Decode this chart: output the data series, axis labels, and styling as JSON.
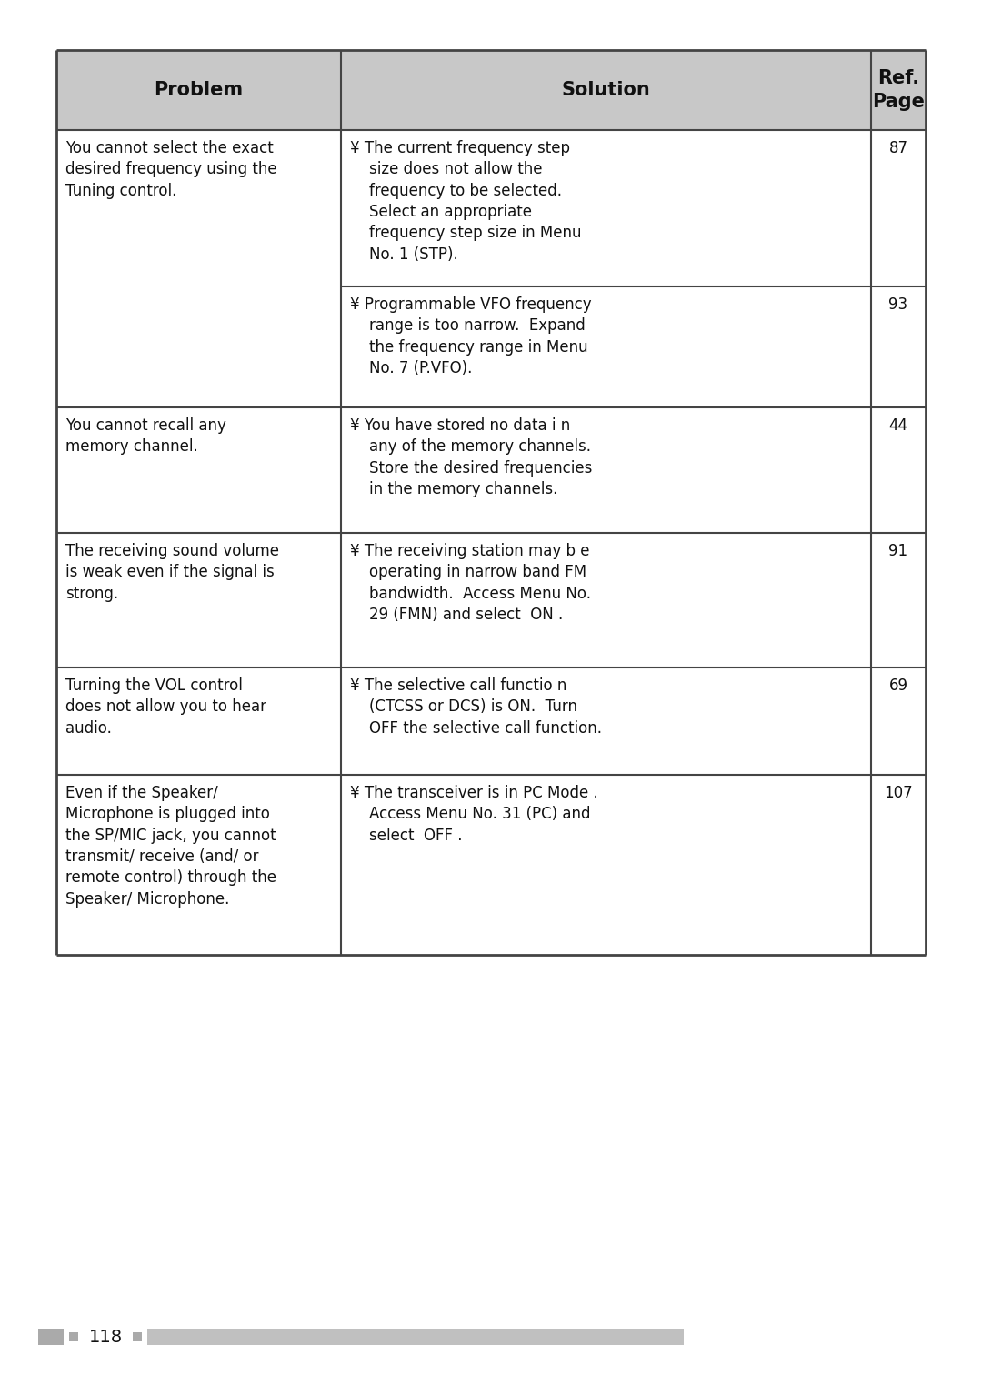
{
  "bg_color": "#ffffff",
  "table_border_color": "#444444",
  "header_bg_color": "#c8c8c8",
  "page_number": "118",
  "header_row": [
    "Problem",
    "Solution",
    "Ref.\nPage"
  ],
  "rows": [
    {
      "problem": "You cannot select the exact\ndesired frequency using the\nTuning control.",
      "solutions": [
        {
          "text": "¥ The current frequency step\n    size does not allow the\n    frequency to be selected.\n    Select an appropriate\n    frequency step size in Menu\n    No. 1 (STP).",
          "ref": "87"
        },
        {
          "text": "¥ Programmable VFO frequency\n    range is too narrow.  Expand\n    the frequency range in Menu\n    No. 7 (P.VFO).",
          "ref": "93"
        }
      ]
    },
    {
      "problem": "You cannot recall any\nmemory channel.",
      "solutions": [
        {
          "text": "¥ You have stored no data i n\n    any of the memory channels.\n    Store the desired frequencies\n    in the memory channels.",
          "ref": "44"
        }
      ]
    },
    {
      "problem": "The receiving sound volume\nis weak even if the signal is\nstrong.",
      "solutions": [
        {
          "text": "¥ The receiving station may b e\n    operating in narrow band FM\n    bandwidth.  Access Menu No.\n    29 (FMN) and select  ON .",
          "ref": "91"
        }
      ]
    },
    {
      "problem": "Turning the VOL control\ndoes not allow you to hear\naudio.",
      "solutions": [
        {
          "text": "¥ The selective call functio n\n    (CTCSS or DCS) is ON.  Turn\n    OFF the selective call function.",
          "ref": "69"
        }
      ]
    },
    {
      "problem": "Even if the Speaker/\nMicrophone is plugged into\nthe SP/MIC jack, you cannot\ntransmit/ receive (and/ or\nremote control) through the\nSpeaker/ Microphone.",
      "solutions": [
        {
          "text": "¥ The transceiver is in PC Mode .\n    Access Menu No. 31 (PC) and\n    select  OFF .",
          "ref": "107"
        }
      ]
    }
  ],
  "footer_bar_color": "#bbbbbb",
  "font_size_header": 15,
  "font_size_body": 12,
  "font_size_page": 14
}
